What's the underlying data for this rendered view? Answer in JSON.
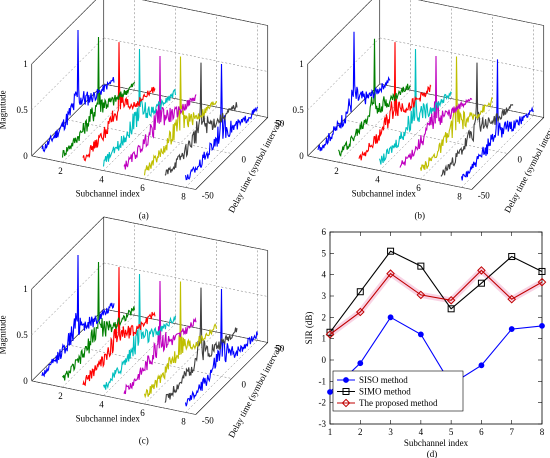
{
  "panels3d": [
    {
      "id": "a",
      "panel_label": "(a)",
      "xlabel": "Subchannel index",
      "ylabel": "Delay time (symbol interval)",
      "zlabel": "Magnitude",
      "x_ticks": [
        "2",
        "4",
        "6",
        "8"
      ],
      "y_ticks": [
        "-50",
        "0",
        "50"
      ],
      "z_ticks": [
        "0",
        "0.5",
        "1"
      ],
      "peaks": [
        1.0,
        0.97,
        0.96,
        0.93,
        0.9,
        0.94,
        0.92,
        0.95
      ]
    },
    {
      "id": "b",
      "panel_label": "(b)",
      "xlabel": "Subchannel index",
      "ylabel": "Delay time (symbol interval)",
      "zlabel": "",
      "x_ticks": [
        "2",
        "4",
        "6",
        "8"
      ],
      "y_ticks": [
        "-50",
        "0",
        "50"
      ],
      "z_ticks": [
        "0",
        "0.5",
        "1"
      ],
      "peaks": [
        0.98,
        0.95,
        0.96,
        0.93,
        0.9,
        0.94,
        0.92,
        1.0
      ]
    },
    {
      "id": "c",
      "panel_label": "(c)",
      "xlabel": "Subchannel index",
      "ylabel": "Delay time (symbol interval)",
      "zlabel": "Magnitude",
      "x_ticks": [
        "2",
        "4",
        "6",
        "8"
      ],
      "y_ticks": [
        "-50",
        "0",
        "50"
      ],
      "z_ticks": [
        "0",
        "0.5",
        "1"
      ],
      "peaks": [
        1.0,
        0.97,
        0.96,
        0.93,
        0.9,
        0.94,
        0.92,
        0.95
      ]
    }
  ],
  "series_colors": [
    "#0000ff",
    "#007f00",
    "#ff0000",
    "#00bfbf",
    "#bf00bf",
    "#bfbf00",
    "#404040",
    "#0000ff"
  ],
  "chart_data": {
    "type": "line",
    "panel_label": "(d)",
    "xlabel": "Subchannel index",
    "ylabel": "SIR (dB)",
    "x": [
      1,
      2,
      3,
      4,
      5,
      6,
      7,
      8
    ],
    "xlim": [
      1,
      8
    ],
    "ylim": [
      -3,
      6
    ],
    "x_ticks": [
      "1",
      "2",
      "3",
      "4",
      "5",
      "6",
      "7",
      "8"
    ],
    "y_ticks": [
      "-3",
      "-2",
      "-1",
      "0",
      "1",
      "2",
      "3",
      "4",
      "5",
      "6"
    ],
    "legend_position": "bottom-left",
    "series": [
      {
        "name": "SISO method",
        "color": "#0000ff",
        "marker": "dot",
        "values": [
          -1.5,
          -0.15,
          2.0,
          1.2,
          -1.15,
          -0.25,
          1.45,
          1.6
        ]
      },
      {
        "name": "SIMO method",
        "color": "#000000",
        "marker": "square",
        "values": [
          1.3,
          3.2,
          5.1,
          4.4,
          2.4,
          3.6,
          4.85,
          4.15
        ]
      },
      {
        "name": "The proposed method",
        "color": "#c00000",
        "marker": "diamond",
        "values": [
          1.2,
          2.25,
          4.05,
          3.05,
          2.8,
          4.2,
          2.85,
          3.65
        ]
      }
    ]
  }
}
